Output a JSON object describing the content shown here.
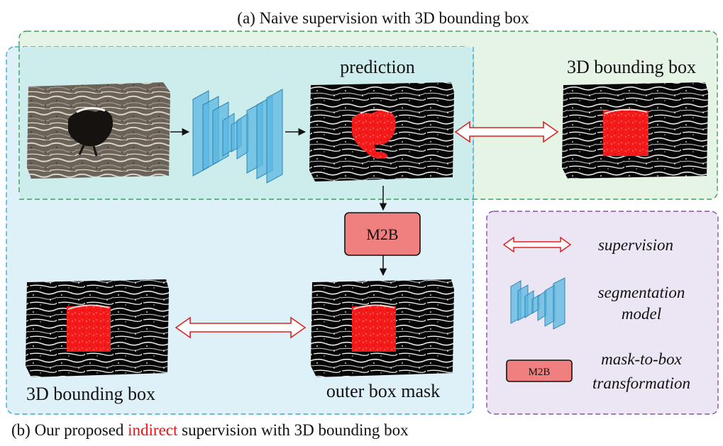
{
  "title_a": "(a) Naive supervision with 3D bounding box",
  "title_b": {
    "prefix": "(b) Our proposed ",
    "highlight": "indirect",
    "suffix": " supervision with 3D bounding box"
  },
  "labels": {
    "prediction": "prediction",
    "bbox_top": "3D bounding box",
    "bbox_bottom": "3D bounding box",
    "outer_box_mask": "outer box mask",
    "m2b_block": "M2B"
  },
  "legend": {
    "supervision": "supervision",
    "segmentation_line1": "segmentation",
    "segmentation_line2": "model",
    "m2b_chip": "M2B",
    "m2b_line1": "mask-to-box",
    "m2b_line2": "transformation"
  },
  "colors": {
    "region_a_fill": "#e6f4e6",
    "region_a_stroke": "#3aa35a",
    "region_b_fill": "#dff1f8",
    "region_b_stroke": "#3aa8d8",
    "overlap_fill": "#cdecec",
    "legend_fill": "#ece6f4",
    "legend_stroke": "#8a4fb0",
    "m2b_fill": "#f07f7f",
    "supervision_arrow": "#dd2222",
    "highlight_text": "#ee1111",
    "mask_red": "#f51a1a",
    "nn_block": "#5ab7e2"
  }
}
